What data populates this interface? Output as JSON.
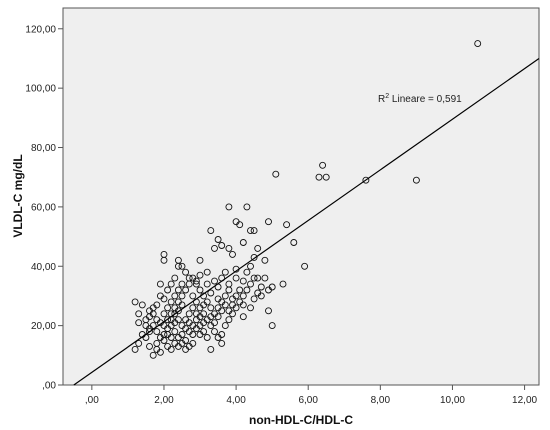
{
  "chart_data": {
    "type": "scatter",
    "xlabel": "non-HDL-C/HDL-C",
    "ylabel": "VLDL-C mg/dL",
    "xlim": [
      -0.8,
      12.4
    ],
    "ylim": [
      0,
      127
    ],
    "x_ticks": [
      0,
      2,
      4,
      6,
      8,
      10,
      12
    ],
    "x_tick_labels": [
      ",00",
      "2,00",
      "4,00",
      "6,00",
      "8,00",
      "10,00",
      "12,00"
    ],
    "y_ticks": [
      0,
      20,
      40,
      60,
      80,
      100,
      120
    ],
    "y_tick_labels": [
      ",00",
      "20,00",
      "40,00",
      "60,00",
      "80,00",
      "100,00",
      "120,00"
    ],
    "grid": false,
    "background": "#efefef",
    "marker": "open-circle",
    "fit_line": {
      "type": "linear",
      "x": [
        -0.5,
        12.4
      ],
      "y": [
        0,
        110
      ],
      "label_prefix": "R",
      "label_sup": "2",
      "label_suffix": " Lineare = 0,591"
    },
    "points": [
      [
        10.7,
        115
      ],
      [
        6.4,
        74
      ],
      [
        6.5,
        70
      ],
      [
        6.3,
        70
      ],
      [
        5.1,
        71
      ],
      [
        7.6,
        69
      ],
      [
        9.0,
        69
      ],
      [
        3.8,
        60
      ],
      [
        4.3,
        60
      ],
      [
        3.3,
        52
      ],
      [
        4.4,
        52
      ],
      [
        4.5,
        52
      ],
      [
        5.4,
        54
      ],
      [
        4.9,
        55
      ],
      [
        4.0,
        55
      ],
      [
        4.1,
        54
      ],
      [
        5.6,
        48
      ],
      [
        3.5,
        49
      ],
      [
        4.2,
        48
      ],
      [
        2.0,
        44
      ],
      [
        2.0,
        42
      ],
      [
        2.4,
        42
      ],
      [
        2.5,
        40
      ],
      [
        2.4,
        40
      ],
      [
        3.0,
        42
      ],
      [
        3.9,
        44
      ],
      [
        4.5,
        43
      ],
      [
        4.8,
        42
      ],
      [
        5.9,
        40
      ],
      [
        4.4,
        40
      ],
      [
        3.4,
        46
      ],
      [
        3.6,
        47
      ],
      [
        3.8,
        46
      ],
      [
        4.6,
        46
      ],
      [
        4.3,
        38
      ],
      [
        4.0,
        39
      ],
      [
        3.7,
        38
      ],
      [
        3.2,
        38
      ],
      [
        2.7,
        36
      ],
      [
        2.9,
        35
      ],
      [
        3.0,
        37
      ],
      [
        5.3,
        34
      ],
      [
        4.8,
        36
      ],
      [
        4.7,
        30
      ],
      [
        4.9,
        25
      ],
      [
        5.0,
        20
      ],
      [
        4.6,
        36
      ],
      [
        4.2,
        35
      ],
      [
        3.8,
        34
      ],
      [
        1.2,
        28
      ],
      [
        1.4,
        27
      ],
      [
        1.3,
        24
      ],
      [
        1.5,
        22
      ],
      [
        1.3,
        21
      ],
      [
        1.4,
        17
      ],
      [
        1.3,
        14
      ],
      [
        1.2,
        12
      ],
      [
        1.6,
        19
      ],
      [
        1.8,
        18
      ],
      [
        1.8,
        12
      ],
      [
        1.7,
        10
      ],
      [
        1.8,
        14
      ],
      [
        1.9,
        16
      ],
      [
        2.0,
        20
      ],
      [
        2.1,
        22
      ],
      [
        2.2,
        24
      ],
      [
        2.3,
        26
      ],
      [
        2.4,
        28
      ],
      [
        2.5,
        30
      ],
      [
        2.6,
        32
      ],
      [
        2.7,
        34
      ],
      [
        2.8,
        30
      ],
      [
        2.9,
        28
      ],
      [
        3.0,
        26
      ],
      [
        3.1,
        24
      ],
      [
        3.2,
        22
      ],
      [
        3.3,
        20
      ],
      [
        3.4,
        18
      ],
      [
        3.5,
        16
      ],
      [
        3.6,
        14
      ],
      [
        2.2,
        20
      ],
      [
        2.3,
        18
      ],
      [
        2.4,
        16
      ],
      [
        2.5,
        14
      ],
      [
        2.6,
        12
      ],
      [
        2.7,
        18
      ],
      [
        2.8,
        20
      ],
      [
        2.9,
        22
      ],
      [
        3.0,
        20
      ],
      [
        3.1,
        18
      ],
      [
        2.0,
        24
      ],
      [
        2.1,
        26
      ],
      [
        2.2,
        28
      ],
      [
        2.3,
        30
      ],
      [
        2.4,
        32
      ],
      [
        2.5,
        34
      ],
      [
        1.9,
        30
      ],
      [
        1.8,
        27
      ],
      [
        1.7,
        24
      ],
      [
        1.6,
        23
      ],
      [
        1.5,
        20
      ],
      [
        2.0,
        15
      ],
      [
        2.1,
        13
      ],
      [
        2.2,
        12
      ],
      [
        2.3,
        14
      ],
      [
        2.4,
        13
      ],
      [
        2.6,
        15
      ],
      [
        2.7,
        13
      ],
      [
        2.8,
        14
      ],
      [
        3.3,
        12
      ],
      [
        3.6,
        17
      ],
      [
        3.7,
        20
      ],
      [
        3.8,
        22
      ],
      [
        3.9,
        24
      ],
      [
        4.0,
        26
      ],
      [
        4.1,
        28
      ],
      [
        4.2,
        30
      ],
      [
        4.3,
        32
      ],
      [
        4.4,
        34
      ],
      [
        4.5,
        36
      ],
      [
        3.6,
        28
      ],
      [
        3.7,
        30
      ],
      [
        3.8,
        32
      ],
      [
        3.9,
        27
      ],
      [
        4.0,
        30
      ],
      [
        4.1,
        32
      ],
      [
        3.5,
        26
      ],
      [
        3.4,
        24
      ],
      [
        3.3,
        26
      ],
      [
        3.2,
        28
      ],
      [
        3.1,
        30
      ],
      [
        3.0,
        32
      ],
      [
        2.9,
        34
      ],
      [
        2.8,
        36
      ],
      [
        2.6,
        38
      ],
      [
        2.7,
        24
      ],
      [
        2.6,
        22
      ],
      [
        2.5,
        20
      ],
      [
        2.4,
        22
      ],
      [
        2.3,
        24
      ],
      [
        2.2,
        22
      ],
      [
        2.1,
        19
      ],
      [
        2.0,
        17
      ],
      [
        1.9,
        21
      ],
      [
        1.8,
        22
      ],
      [
        1.7,
        20
      ],
      [
        1.6,
        18
      ],
      [
        1.5,
        16
      ],
      [
        1.6,
        13
      ],
      [
        1.9,
        11
      ],
      [
        2.5,
        17
      ],
      [
        2.6,
        19
      ],
      [
        2.8,
        17
      ],
      [
        2.9,
        19
      ],
      [
        3.0,
        17
      ],
      [
        3.1,
        21
      ],
      [
        3.2,
        16
      ],
      [
        3.3,
        23
      ],
      [
        3.4,
        21
      ],
      [
        3.5,
        23
      ],
      [
        3.6,
        25
      ],
      [
        3.7,
        27
      ],
      [
        3.8,
        25
      ],
      [
        3.9,
        29
      ],
      [
        4.0,
        36
      ],
      [
        4.2,
        23
      ],
      [
        4.4,
        26
      ],
      [
        4.5,
        29
      ],
      [
        4.6,
        31
      ],
      [
        4.7,
        33
      ],
      [
        3.4,
        35
      ],
      [
        3.5,
        33
      ],
      [
        3.6,
        36
      ],
      [
        3.2,
        34
      ],
      [
        3.3,
        31
      ],
      [
        2.2,
        34
      ],
      [
        2.3,
        36
      ],
      [
        2.1,
        32
      ],
      [
        1.9,
        34
      ],
      [
        2.0,
        29
      ],
      [
        1.7,
        26
      ],
      [
        1.6,
        25
      ],
      [
        4.9,
        32
      ],
      [
        5.0,
        33
      ],
      [
        4.2,
        27
      ],
      [
        3.5,
        29
      ],
      [
        2.8,
        26
      ],
      [
        2.9,
        24
      ],
      [
        3.0,
        23
      ],
      [
        2.4,
        25
      ],
      [
        2.5,
        27
      ],
      [
        2.1,
        17
      ],
      [
        2.2,
        16
      ],
      [
        2.3,
        21
      ],
      [
        2.7,
        21
      ],
      [
        3.1,
        27
      ]
    ]
  }
}
